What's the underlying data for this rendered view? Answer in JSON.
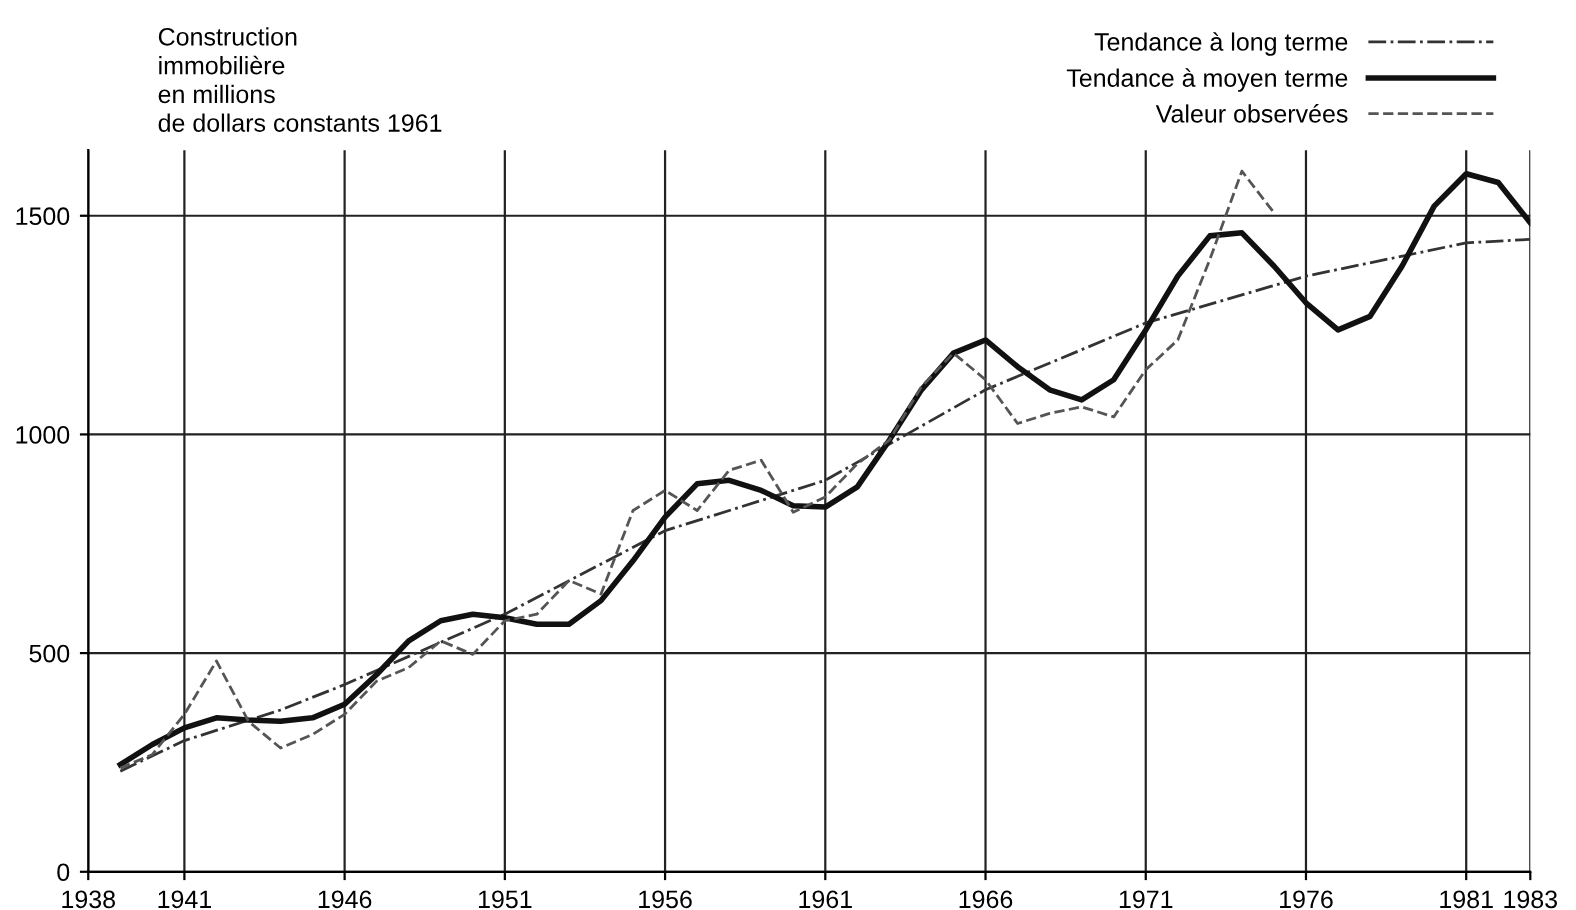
{
  "chart_data": {
    "type": "line",
    "title": "Construction\nimmobilière\nen millions\nde dollars constants 1961",
    "xlim": [
      1938,
      1983
    ],
    "xticks": [
      1938,
      1941,
      1946,
      1951,
      1956,
      1961,
      1966,
      1971,
      1976,
      1981,
      1983
    ],
    "ylim": [
      0,
      1650
    ],
    "yticks": [
      0,
      500,
      1000,
      1500
    ],
    "grid": true,
    "legend": "top right",
    "series": [
      {
        "name": "Tendance à long terme",
        "color": "#333333",
        "line_style": "dashdot",
        "x": [
          1939,
          1941,
          1944,
          1946,
          1951,
          1956,
          1961,
          1966,
          1971,
          1976,
          1981,
          1983
        ],
        "values": [
          230,
          300,
          370,
          428,
          589,
          780,
          895,
          1102,
          1255,
          1362,
          1438,
          1446
        ]
      },
      {
        "name": "Tendance à moyen terme",
        "color": "#111111",
        "line_style": "solid",
        "x": [
          1939,
          1940,
          1941,
          1942,
          1943,
          1944,
          1945,
          1946,
          1947,
          1948,
          1949,
          1950,
          1951,
          1952,
          1953,
          1954,
          1955,
          1956,
          1957,
          1958,
          1959,
          1960,
          1961,
          1962,
          1963,
          1964,
          1965,
          1966,
          1967,
          1968,
          1969,
          1970,
          1971,
          1972,
          1973,
          1974,
          1975,
          1976,
          1977,
          1978,
          1979,
          1980,
          1981,
          1982,
          1983
        ],
        "values": [
          245,
          291,
          329,
          352,
          347,
          344,
          352,
          383,
          451,
          528,
          574,
          589,
          581,
          566,
          566,
          620,
          711,
          811,
          887,
          895,
          872,
          837,
          834,
          880,
          987,
          1102,
          1186,
          1216,
          1155,
          1102,
          1079,
          1125,
          1239,
          1362,
          1454,
          1461,
          1385,
          1301,
          1239,
          1270,
          1385,
          1522,
          1596,
          1576,
          1484
        ]
      },
      {
        "name": "Valeur observées",
        "color": "#555555",
        "line_style": "dashed",
        "x": [
          1939,
          1940,
          1941,
          1942,
          1943,
          1944,
          1945,
          1946,
          1947,
          1948,
          1949,
          1950,
          1951,
          1952,
          1953,
          1954,
          1955,
          1956,
          1957,
          1958,
          1959,
          1960,
          1961,
          1962,
          1963,
          1964,
          1965,
          1966,
          1967,
          1968,
          1969,
          1970,
          1971,
          1972,
          1973,
          1974,
          1975
        ],
        "values": [
          237,
          268,
          360,
          482,
          344,
          283,
          314,
          360,
          436,
          467,
          528,
          497,
          574,
          589,
          666,
          635,
          826,
          872,
          826,
          918,
          941,
          822,
          857,
          933,
          987,
          1109,
          1186,
          1125,
          1025,
          1048,
          1063,
          1040,
          1148,
          1216,
          1400,
          1602,
          1507
        ]
      }
    ]
  }
}
